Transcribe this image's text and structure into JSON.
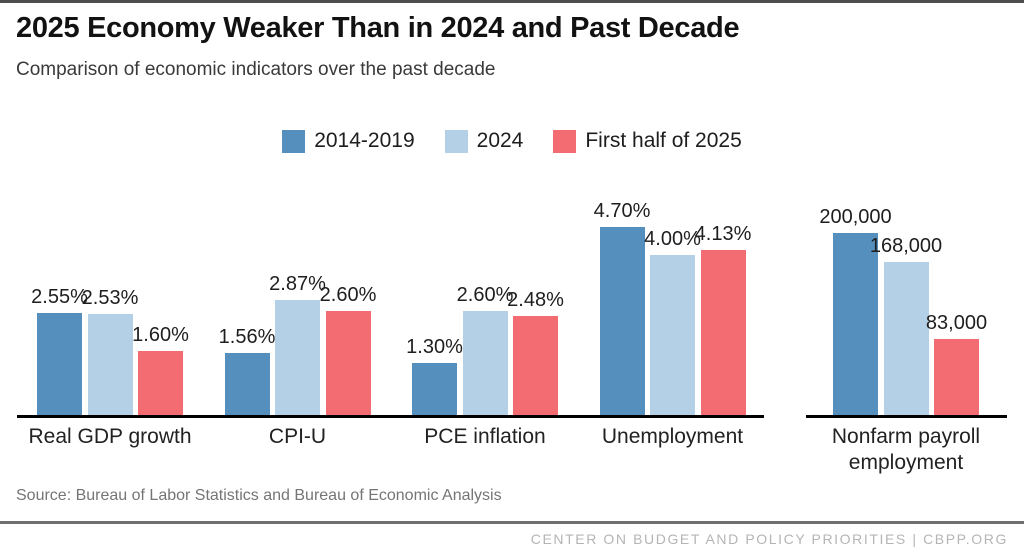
{
  "header": {
    "title": "2025 Economy Weaker Than in 2024 and Past Decade",
    "subtitle": "Comparison of economic indicators over the past decade"
  },
  "chart_data": {
    "type": "bar",
    "title": "2025 Economy Weaker Than in 2024 and Past Decade",
    "subtitle": "Comparison of economic indicators over the past decade",
    "legend_position": "top-center",
    "grid": false,
    "categories": [
      "Real GDP growth",
      "CPI-U",
      "PCE inflation",
      "Unemployment",
      "Nonfarm payroll employment"
    ],
    "category_units": [
      "percent",
      "percent",
      "percent",
      "percent",
      "count"
    ],
    "axis_hints": {
      "percent_axis_max": 5.0,
      "count_axis_max": 220000,
      "baseline_broken_between_groups": [
        4,
        5
      ]
    },
    "series": [
      {
        "name": "2014-2019",
        "color": "#548fbe",
        "values": [
          2.55,
          1.56,
          1.3,
          4.7,
          200000
        ],
        "labels": [
          "2.55%",
          "1.56%",
          "1.30%",
          "4.70%",
          "200,000"
        ]
      },
      {
        "name": "2024",
        "color": "#b4d0e7",
        "values": [
          2.53,
          2.87,
          2.6,
          4.0,
          168000
        ],
        "labels": [
          "2.53%",
          "2.87%",
          "2.60%",
          "4.00%",
          "168,000"
        ]
      },
      {
        "name": "First half of 2025",
        "color": "#f36c72",
        "values": [
          1.6,
          2.6,
          2.48,
          4.13,
          83000
        ],
        "labels": [
          "1.60%",
          "2.60%",
          "2.48%",
          "4.13%",
          "83,000"
        ]
      }
    ]
  },
  "footer": {
    "source": "Source: Bureau of Labor Statistics and Bureau of Economic Analysis",
    "credit": "CENTER ON BUDGET AND POLICY PRIORITIES | CBPP.ORG"
  }
}
